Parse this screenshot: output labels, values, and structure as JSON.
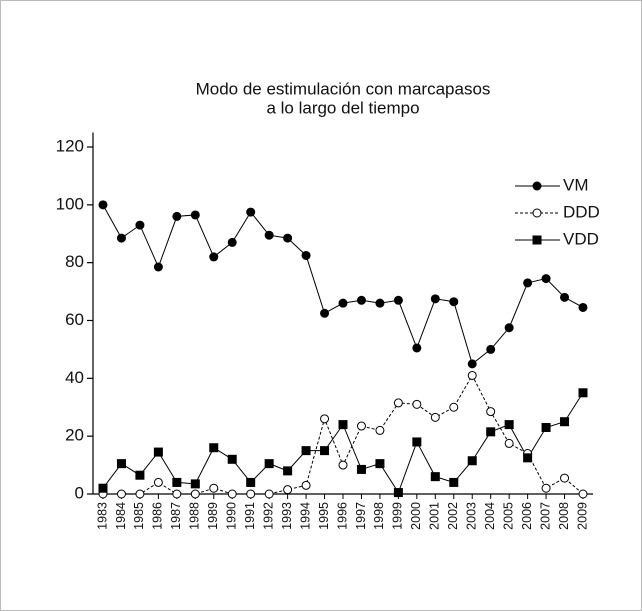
{
  "chart_data": {
    "type": "line",
    "title": [
      "Modo de estimulación con marcapasos",
      "a lo largo del tiempo"
    ],
    "categories": [
      "1983",
      "1984",
      "1985",
      "1986",
      "1987",
      "1988",
      "1989",
      "1990",
      "1991",
      "1992",
      "1993",
      "1994",
      "1995",
      "1996",
      "1997",
      "1998",
      "1999",
      "2000",
      "2001",
      "2002",
      "2003",
      "2004",
      "2005",
      "2006",
      "2007",
      "2008",
      "2009"
    ],
    "series": [
      {
        "name": "VM",
        "color": "#000000",
        "marker": "filled-circle",
        "dash": false,
        "values": [
          100,
          88.5,
          93,
          78.5,
          96,
          96.5,
          82,
          87,
          97.5,
          89.5,
          88.5,
          82.5,
          62.5,
          66,
          67,
          66,
          67,
          50.5,
          67.5,
          66.5,
          45,
          50,
          57.5,
          73,
          74.5,
          68,
          64.5
        ]
      },
      {
        "name": "DDD",
        "color": "#000000",
        "marker": "open-circle",
        "dash": true,
        "values": [
          0,
          0,
          0,
          4,
          0,
          0,
          2,
          0,
          0,
          0,
          1.5,
          3,
          26,
          10,
          23.5,
          22,
          31.5,
          31,
          26.5,
          30,
          41,
          28.5,
          17.5,
          14,
          2,
          5.5,
          0
        ]
      },
      {
        "name": "VDD",
        "color": "#000000",
        "marker": "filled-square",
        "dash": false,
        "values": [
          2,
          10.5,
          6.5,
          14.5,
          4,
          3.5,
          16,
          12,
          4,
          10.5,
          8,
          15,
          15,
          24,
          8.5,
          10.5,
          0.5,
          18,
          6,
          4,
          11.5,
          21.5,
          24,
          12.5,
          23,
          25,
          35
        ]
      }
    ],
    "ylim": [
      0,
      125
    ],
    "yticks": [
      0,
      20,
      40,
      60,
      80,
      100,
      120
    ],
    "legend": "upper-right",
    "grid": false
  }
}
